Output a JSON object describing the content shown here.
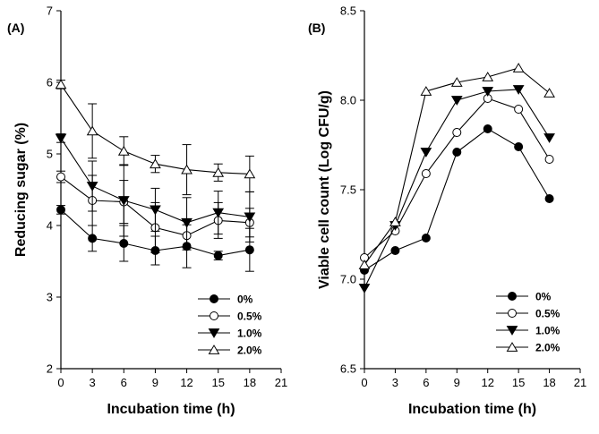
{
  "chart_data": [
    {
      "type": "line",
      "panel_label": "(A)",
      "xlabel": "Incubation time (h)",
      "ylabel": "Reducing sugar (%)",
      "xlim": [
        0,
        21
      ],
      "ylim": [
        2,
        7
      ],
      "xticks": [
        "0",
        "3",
        "6",
        "9",
        "12",
        "15",
        "18",
        "21"
      ],
      "yticks": [
        "2",
        "3",
        "4",
        "5",
        "6",
        "7"
      ],
      "x": [
        0,
        3,
        6,
        9,
        12,
        15,
        18
      ],
      "grid": false,
      "legend_position": "bottom-right",
      "series": [
        {
          "name": "0%",
          "marker": "filled-circle",
          "values": [
            4.22,
            3.82,
            3.75,
            3.65,
            3.71,
            3.58,
            3.66
          ],
          "errors": [
            0.06,
            0.18,
            0.25,
            0.2,
            0.3,
            0.06,
            0.3
          ]
        },
        {
          "name": "0.5%",
          "marker": "open-circle",
          "values": [
            4.68,
            4.35,
            4.33,
            3.97,
            3.86,
            4.07,
            4.04
          ],
          "errors": [
            0.08,
            0.35,
            0.3,
            0.35,
            0.2,
            0.25,
            0.2
          ]
        },
        {
          "name": "1.0%",
          "marker": "filled-triangle-down",
          "values": [
            5.22,
            4.55,
            4.35,
            4.22,
            4.04,
            4.18,
            4.12
          ],
          "errors": [
            0.06,
            0.35,
            0.5,
            0.3,
            0.35,
            0.3,
            0.35
          ]
        },
        {
          "name": "2.0%",
          "marker": "open-triangle-up",
          "values": [
            5.97,
            5.32,
            5.04,
            4.86,
            4.78,
            4.74,
            4.72
          ],
          "errors": [
            0.06,
            0.38,
            0.2,
            0.12,
            0.35,
            0.12,
            0.25
          ]
        }
      ]
    },
    {
      "type": "line",
      "panel_label": "(B)",
      "xlabel": "Incubation time (h)",
      "ylabel": "Viable cell count (Log CFU/g)",
      "xlim": [
        0,
        21
      ],
      "ylim": [
        6.5,
        8.5
      ],
      "xticks": [
        "0",
        "3",
        "6",
        "9",
        "12",
        "15",
        "18",
        "21"
      ],
      "yticks": [
        "6.5",
        "7.0",
        "7.5",
        "8.0",
        "8.5"
      ],
      "x": [
        0,
        3,
        6,
        9,
        12,
        15,
        18
      ],
      "grid": false,
      "legend_position": "bottom-right",
      "series": [
        {
          "name": "0%",
          "marker": "filled-circle",
          "values": [
            7.05,
            7.16,
            7.23,
            7.71,
            7.84,
            7.74,
            7.45
          ]
        },
        {
          "name": "0.5%",
          "marker": "open-circle",
          "values": [
            7.12,
            7.27,
            7.59,
            7.82,
            8.01,
            7.95,
            7.67
          ]
        },
        {
          "name": "1.0%",
          "marker": "filled-triangle-down",
          "values": [
            6.95,
            7.3,
            7.71,
            8.0,
            8.05,
            8.06,
            7.79
          ]
        },
        {
          "name": "2.0%",
          "marker": "open-triangle-up",
          "values": [
            7.08,
            7.32,
            8.05,
            8.1,
            8.13,
            8.18,
            8.04
          ]
        }
      ]
    }
  ]
}
